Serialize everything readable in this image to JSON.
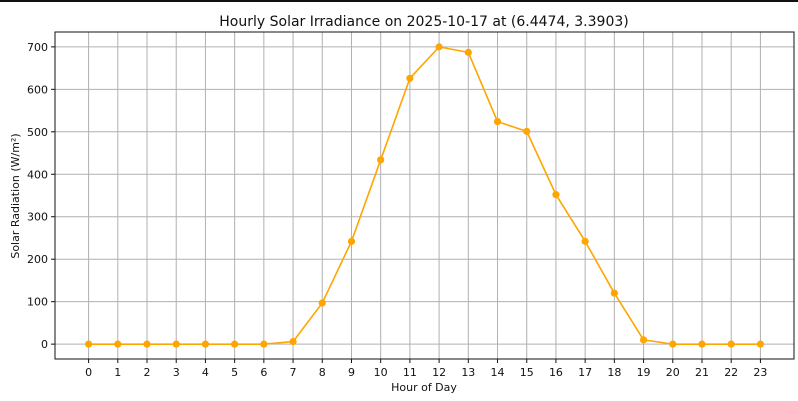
{
  "chart_data": {
    "type": "line",
    "title": "Hourly Solar Irradiance on 2025-10-17 at (6.4474, 3.3903)",
    "xlabel": "Hour of Day",
    "ylabel": "Solar Radiation (W/m²)",
    "x": [
      0,
      1,
      2,
      3,
      4,
      5,
      6,
      7,
      8,
      9,
      10,
      11,
      12,
      13,
      14,
      15,
      16,
      17,
      18,
      19,
      20,
      21,
      22,
      23
    ],
    "x_tick_labels": [
      "0",
      "1",
      "2",
      "3",
      "4",
      "5",
      "6",
      "7",
      "8",
      "9",
      "10",
      "11",
      "12",
      "13",
      "14",
      "15",
      "16",
      "17",
      "18",
      "19",
      "20",
      "21",
      "22",
      "23"
    ],
    "series": [
      {
        "values": [
          0,
          0,
          0,
          0,
          0,
          0,
          0,
          6,
          97,
          242,
          434,
          626,
          700,
          687,
          524,
          501,
          352,
          242,
          120,
          10,
          0,
          0,
          0,
          0
        ],
        "color": "#ffa500",
        "marker": "circle"
      }
    ],
    "xlim": [
      -1.15,
      24.15
    ],
    "ylim": [
      -35,
      735
    ],
    "y_ticks": [
      0,
      100,
      200,
      300,
      400,
      500,
      600,
      700
    ],
    "y_tick_labels": [
      "0",
      "100",
      "200",
      "300",
      "400",
      "500",
      "600",
      "700"
    ],
    "grid": true,
    "grid_color": "#b0b0b0"
  }
}
